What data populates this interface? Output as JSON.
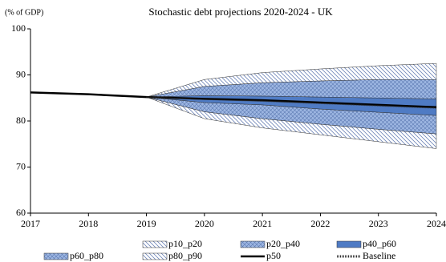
{
  "chart_data": {
    "type": "fan",
    "title": "Stochastic  debt projections 2020-2024 - UK",
    "y_label": "(% of GDP)",
    "x": [
      2017,
      2018,
      2019,
      2020,
      2021,
      2022,
      2023,
      2024
    ],
    "xlim": [
      2017,
      2024
    ],
    "xticks": [
      2017,
      2018,
      2019,
      2020,
      2021,
      2022,
      2023,
      2024
    ],
    "ylim": [
      60,
      100
    ],
    "yticks": [
      60,
      70,
      80,
      90,
      100
    ],
    "bands": [
      {
        "name": "p10_p20",
        "pattern": "hatch",
        "color": "#6f86b8",
        "lower": [
          null,
          null,
          85.2,
          80.5,
          78.5,
          77,
          75.5,
          74
        ],
        "upper": [
          null,
          null,
          85.2,
          82,
          80.5,
          79.3,
          78.2,
          77.2
        ]
      },
      {
        "name": "p20_p40",
        "pattern": "dots",
        "color": "#9db6e2",
        "lower": [
          null,
          null,
          85.2,
          82,
          80.5,
          79.3,
          78.2,
          77.2
        ],
        "upper": [
          null,
          null,
          85.2,
          84,
          83.5,
          82.6,
          81.9,
          81.2
        ]
      },
      {
        "name": "p40_p60",
        "pattern": "solid",
        "color": "#4f7bc4",
        "lower": [
          null,
          null,
          85.2,
          84,
          83.5,
          82.6,
          81.9,
          81.2
        ],
        "upper": [
          null,
          null,
          85.2,
          85.5,
          85.4,
          85.2,
          85,
          84.8
        ]
      },
      {
        "name": "p60_p80",
        "pattern": "dots",
        "color": "#9db6e2",
        "lower": [
          null,
          null,
          85.2,
          85.5,
          85.4,
          85.2,
          85,
          84.8
        ],
        "upper": [
          null,
          null,
          85.2,
          87.5,
          88.3,
          88.7,
          89,
          89
        ]
      },
      {
        "name": "p80_p90",
        "pattern": "hatch",
        "color": "#6f86b8",
        "lower": [
          null,
          null,
          85.2,
          87.5,
          88.3,
          88.7,
          89,
          89
        ],
        "upper": [
          null,
          null,
          85.2,
          89,
          90.5,
          91.3,
          92,
          92.5
        ]
      }
    ],
    "series": [
      {
        "name": "p50",
        "style": "solid",
        "color": "#000000",
        "values": [
          86.2,
          85.8,
          85.2,
          84.8,
          84.5,
          84,
          83.5,
          83
        ]
      },
      {
        "name": "Baseline",
        "style": "dotted",
        "color": "#333333",
        "values": [
          null,
          null,
          85.2,
          84.7,
          84.3,
          83.8,
          83.3,
          82.8
        ]
      }
    ]
  }
}
